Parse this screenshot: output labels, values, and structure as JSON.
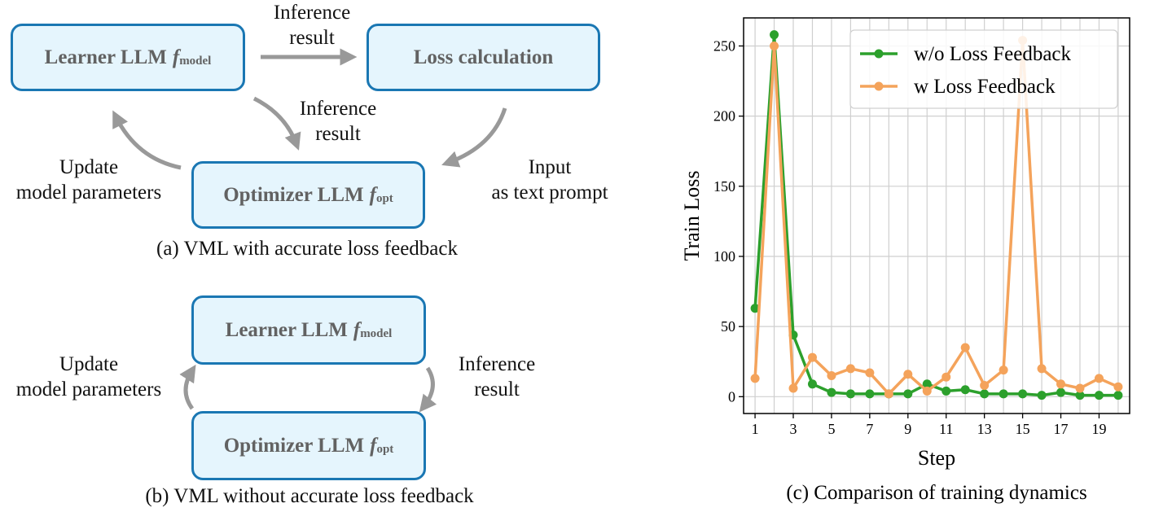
{
  "panel_a": {
    "learner": {
      "label": "Learner LLM",
      "sym": "f",
      "sub": "model"
    },
    "loss": {
      "label": "Loss calculation"
    },
    "optimizer": {
      "label": "Optimizer LLM",
      "sym": "f",
      "sub": "opt"
    },
    "edge_top": [
      "Inference",
      "result"
    ],
    "edge_mid": [
      "Inference",
      "result"
    ],
    "edge_left": [
      "Update",
      "model parameters"
    ],
    "edge_right": [
      "Input",
      "as text prompt"
    ],
    "caption": "(a) VML with accurate loss feedback"
  },
  "panel_b": {
    "learner": {
      "label": "Learner LLM",
      "sym": "f",
      "sub": "model"
    },
    "optimizer": {
      "label": "Optimizer LLM",
      "sym": "f",
      "sub": "opt"
    },
    "edge_left": [
      "Update",
      "model parameters"
    ],
    "edge_right": [
      "Inference",
      "result"
    ],
    "caption": "(b) VML without accurate loss feedback"
  },
  "colors": {
    "box_fill": "#e5f5fd",
    "box_border": "#1a77b3",
    "arrow": "#999999",
    "green": "#2ca02c",
    "orange": "#f4a35b"
  },
  "chart_data": {
    "type": "line",
    "caption": "(c) Comparison of training dynamics",
    "xlabel": "Step",
    "ylabel": "Train Loss",
    "x": [
      1,
      2,
      3,
      4,
      5,
      6,
      7,
      8,
      9,
      10,
      11,
      12,
      13,
      14,
      15,
      16,
      17,
      18,
      19,
      20
    ],
    "xticks": [
      1,
      3,
      5,
      7,
      9,
      11,
      13,
      15,
      17,
      19
    ],
    "yticks": [
      0,
      50,
      100,
      150,
      200,
      250
    ],
    "xlim": [
      0.4,
      20.6
    ],
    "ylim": [
      -12,
      270
    ],
    "grid": true,
    "legend_position": "upper-right",
    "series": [
      {
        "name": "w/o Loss Feedback",
        "color": "#2ca02c",
        "values": [
          63,
          258,
          44,
          9,
          3,
          2,
          2,
          2,
          2,
          9,
          4,
          5,
          2,
          2,
          2,
          1,
          3,
          1,
          1,
          1
        ]
      },
      {
        "name": "w Loss Feedback",
        "color": "#f4a35b",
        "values": [
          13,
          250,
          6,
          28,
          15,
          20,
          17,
          2,
          16,
          4,
          14,
          35,
          8,
          19,
          254,
          20,
          9,
          6,
          13,
          7
        ]
      }
    ]
  }
}
